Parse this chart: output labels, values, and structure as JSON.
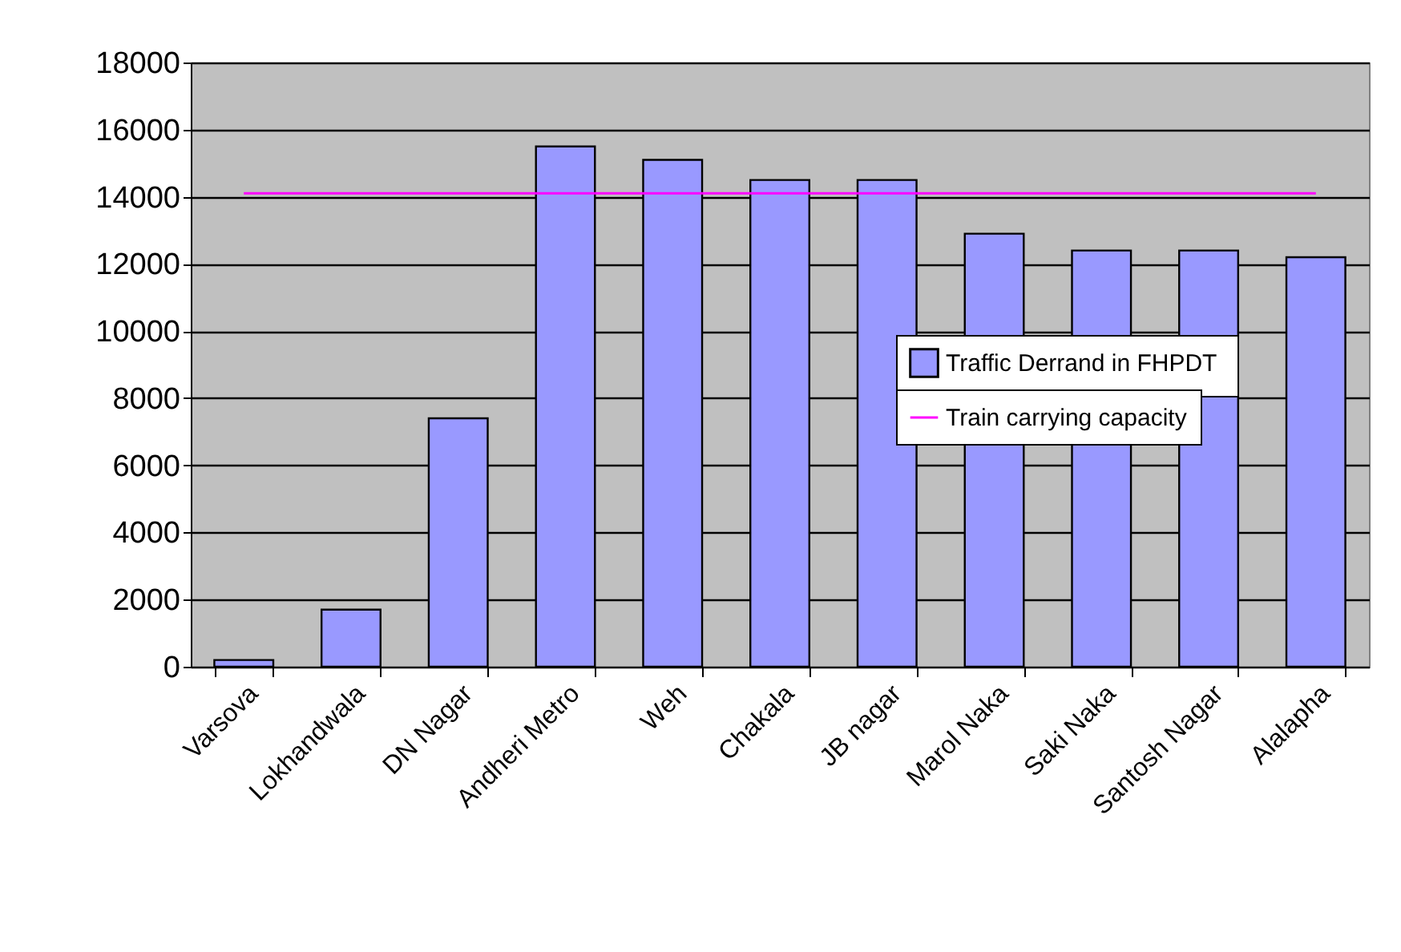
{
  "chart_data": {
    "type": "bar",
    "categories": [
      "Varsova",
      "Lokhandwala",
      "DN Nagar",
      "Andheri Metro",
      "Weh",
      "Chakala",
      "JB nagar",
      "Marol Naka",
      "Saki Naka",
      "Santosh Nagar",
      "Alalapha"
    ],
    "series": [
      {
        "name": "Traffic Derrand  in FHPDT",
        "color": "#9999ff",
        "values": [
          200,
          1700,
          7400,
          15500,
          15100,
          14500,
          14500,
          12900,
          12400,
          12400,
          12200
        ]
      },
      {
        "name": "Train carrying capacity",
        "type": "line",
        "color": "#ff00ff",
        "values": [
          14100,
          14100,
          14100,
          14100,
          14100,
          14100,
          14100,
          14100,
          14100,
          14100,
          14100
        ]
      }
    ],
    "ylim": [
      0,
      18000
    ],
    "yticks": [
      0,
      2000,
      4000,
      6000,
      8000,
      10000,
      12000,
      14000,
      16000,
      18000
    ],
    "grid": "y",
    "legend": "right"
  }
}
